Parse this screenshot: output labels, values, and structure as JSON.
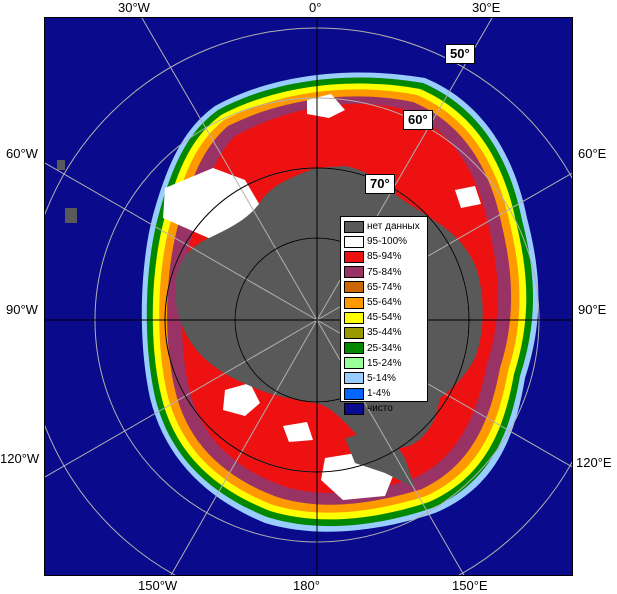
{
  "colors": {
    "ocean": "#0a0a8c",
    "land": "#595959",
    "white_ice": "#ffffff",
    "red_ice": "#ee1111",
    "purple_ice": "#993366",
    "orange_ice": "#cc6600",
    "grid": "#b0b0b0"
  },
  "longitude_labels": {
    "top": [
      "30°W",
      "0°",
      "30°E"
    ],
    "left": [
      "60°W",
      "90°W",
      "120°W"
    ],
    "right": [
      "60°E",
      "90°E",
      "120°E"
    ],
    "bottom": [
      "150°W",
      "180°",
      "150°E"
    ]
  },
  "latitude_labels": [
    "50°",
    "60°",
    "70°"
  ],
  "legend": {
    "items": [
      {
        "label": "нет данных",
        "color": "#595959"
      },
      {
        "label": "95-100%",
        "color": "#ffffff"
      },
      {
        "label": "85-94%",
        "color": "#ee1111"
      },
      {
        "label": "75-84%",
        "color": "#993366"
      },
      {
        "label": "65-74%",
        "color": "#cc6600"
      },
      {
        "label": "55-64%",
        "color": "#ff9900"
      },
      {
        "label": "45-54%",
        "color": "#ffff00"
      },
      {
        "label": "35-44%",
        "color": "#999900"
      },
      {
        "label": "25-34%",
        "color": "#008800"
      },
      {
        "label": "15-24%",
        "color": "#99ff99"
      },
      {
        "label": "5-14%",
        "color": "#99ccff"
      },
      {
        "label": "1-4%",
        "color": "#0066ff"
      },
      {
        "label": "чисто",
        "color": "#0a0a8c"
      }
    ]
  }
}
